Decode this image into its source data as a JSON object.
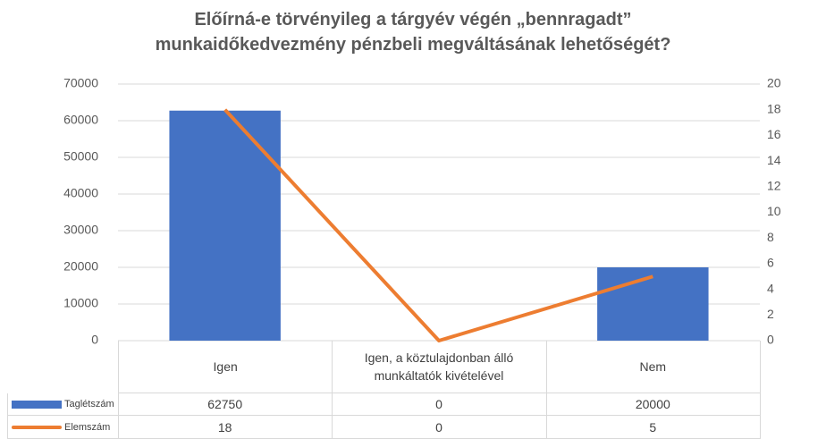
{
  "chart_data": {
    "type": "combo",
    "title": "Előírná-e törvényileg a tárgyév végén „bennragadt” munkaidőkedvezmény pénzbeli megváltásának lehetőségét?",
    "categories": [
      "Igen",
      "Igen, a köztulajdonban álló munkáltatók kivételével",
      "Nem"
    ],
    "series": [
      {
        "name": "Taglétszám",
        "type": "bar",
        "color": "#4472c4",
        "values": [
          62750,
          0,
          20000
        ]
      },
      {
        "name": "Elemszám",
        "type": "line",
        "color": "#ed7d31",
        "axis": "y2",
        "values": [
          18,
          0,
          5
        ]
      }
    ],
    "ylim": [
      0,
      70000
    ],
    "yticks": [
      0,
      10000,
      20000,
      30000,
      40000,
      50000,
      60000,
      70000
    ],
    "y2lim": [
      0,
      20
    ],
    "y2ticks": [
      0,
      2,
      4,
      6,
      8,
      10,
      12,
      14,
      16,
      18,
      20
    ],
    "grid": true
  }
}
